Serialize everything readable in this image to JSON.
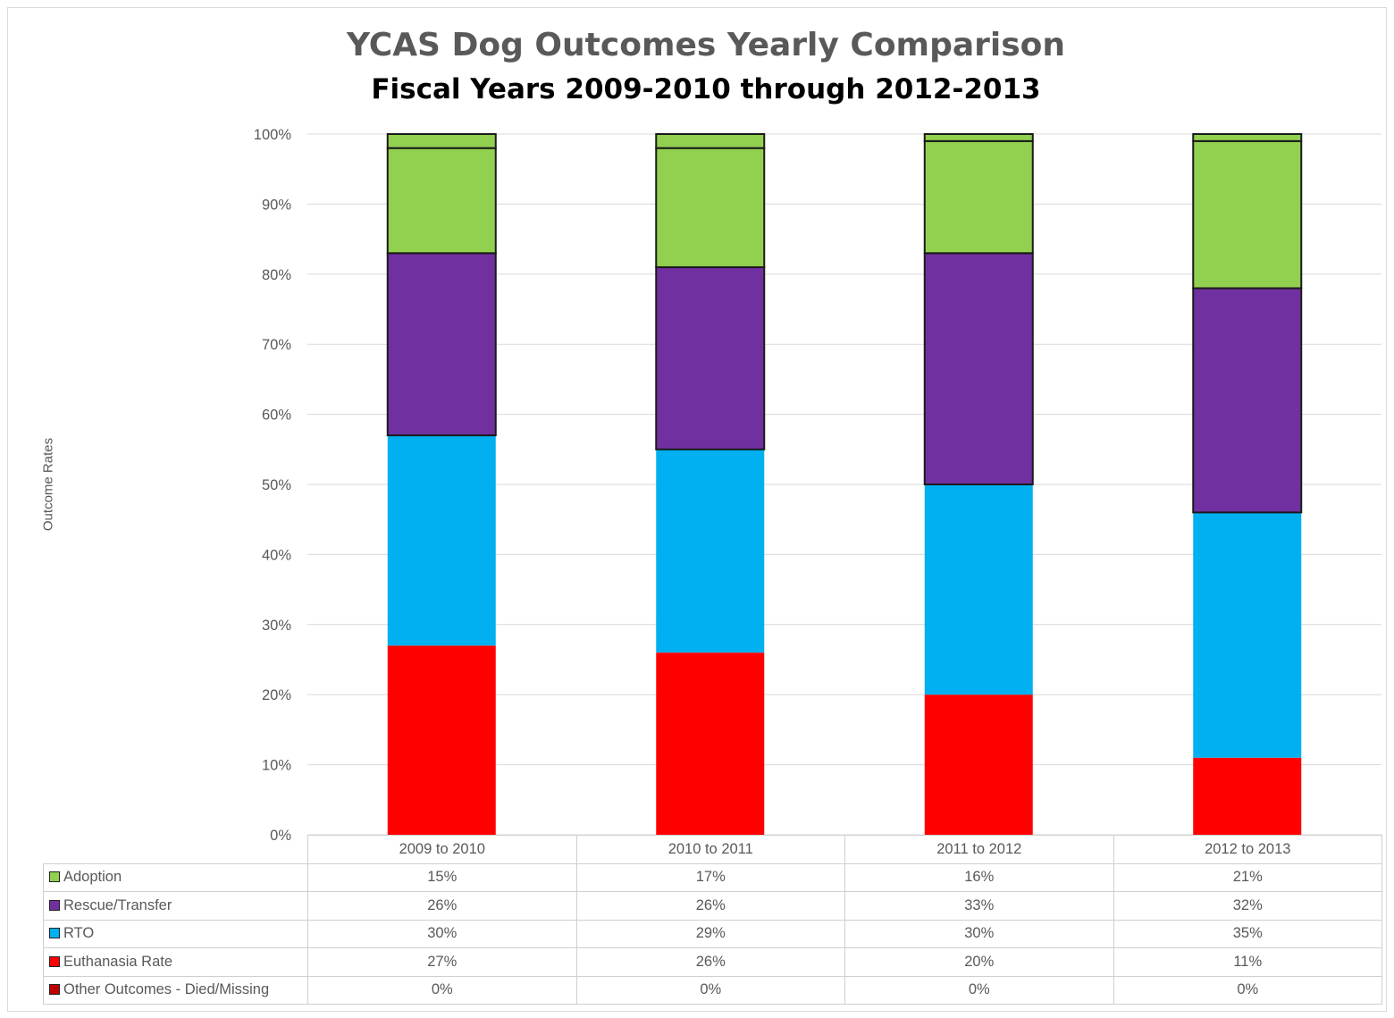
{
  "chart_data": {
    "type": "bar",
    "stacked": true,
    "title": "YCAS Dog Outcomes Yearly Comparison",
    "subtitle": "Fiscal Years 2009-2010 through 2012-2013",
    "ylabel": "Outcome Rates",
    "xlabel": "",
    "ylim": [
      0,
      100
    ],
    "y_ticks": [
      "0%",
      "10%",
      "20%",
      "30%",
      "40%",
      "50%",
      "60%",
      "70%",
      "80%",
      "90%",
      "100%"
    ],
    "grid": true,
    "legend": "data table below chart",
    "categories": [
      "2009 to 2010",
      "2010 to 2011",
      "2011 to 2012",
      "2012 to 2013"
    ],
    "series": [
      {
        "name": "Adoption",
        "color": "#92d050",
        "values": [
          15,
          17,
          16,
          21
        ],
        "labels": [
          "15%",
          "17%",
          "16%",
          "21%"
        ]
      },
      {
        "name": "Rescue/Transfer",
        "color": "#7030a0",
        "values": [
          26,
          26,
          33,
          32
        ],
        "labels": [
          "26%",
          "26%",
          "33%",
          "32%"
        ]
      },
      {
        "name": "RTO",
        "color": "#00b0f0",
        "values": [
          30,
          29,
          30,
          35
        ],
        "labels": [
          "30%",
          "29%",
          "30%",
          "35%"
        ]
      },
      {
        "name": "Euthanasia Rate",
        "color": "#ff0000",
        "values": [
          27,
          26,
          20,
          11
        ],
        "labels": [
          "27%",
          "26%",
          "20%",
          "11%"
        ]
      },
      {
        "name": "Other Outcomes - Died/Missing",
        "color": "#c00000",
        "values": [
          0,
          0,
          0,
          0
        ],
        "labels": [
          "0%",
          "0%",
          "0%",
          "0%"
        ]
      }
    ]
  }
}
